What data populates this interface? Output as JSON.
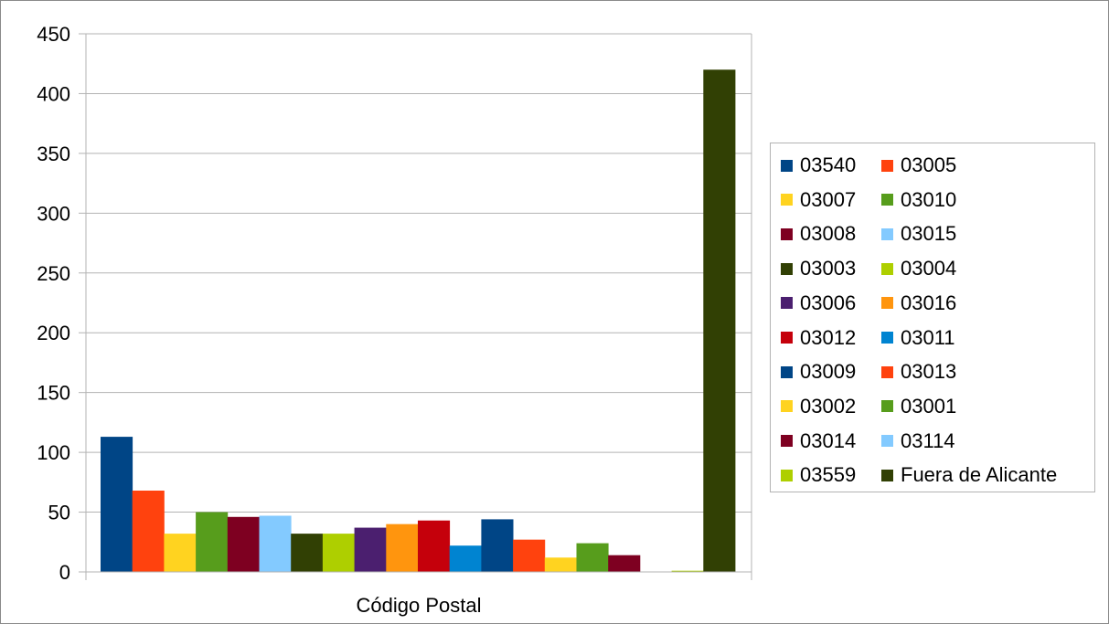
{
  "chart_data": {
    "type": "bar",
    "xlabel": "Código Postal",
    "ylabel": "",
    "title": "",
    "ylim": [
      0,
      450
    ],
    "yticks": [
      0,
      50,
      100,
      150,
      200,
      250,
      300,
      350,
      400,
      450
    ],
    "grid": true,
    "legend_position": "right",
    "categories": [
      "Código Postal"
    ],
    "series": [
      {
        "name": "03540",
        "values": [
          113
        ],
        "color": "#004586"
      },
      {
        "name": "03005",
        "values": [
          68
        ],
        "color": "#ff420e"
      },
      {
        "name": "03007",
        "values": [
          32
        ],
        "color": "#ffd320"
      },
      {
        "name": "03010",
        "values": [
          50
        ],
        "color": "#579d1c"
      },
      {
        "name": "03008",
        "values": [
          46
        ],
        "color": "#7e0021"
      },
      {
        "name": "03015",
        "values": [
          47
        ],
        "color": "#83caff"
      },
      {
        "name": "03003",
        "values": [
          32
        ],
        "color": "#314004"
      },
      {
        "name": "03004",
        "values": [
          32
        ],
        "color": "#aecf00"
      },
      {
        "name": "03006",
        "values": [
          37
        ],
        "color": "#4b1f6f"
      },
      {
        "name": "03016",
        "values": [
          40
        ],
        "color": "#ff950e"
      },
      {
        "name": "03012",
        "values": [
          43
        ],
        "color": "#c5000b"
      },
      {
        "name": "03011",
        "values": [
          22
        ],
        "color": "#0084d1"
      },
      {
        "name": "03009",
        "values": [
          44
        ],
        "color": "#004586"
      },
      {
        "name": "03013",
        "values": [
          27
        ],
        "color": "#ff420e"
      },
      {
        "name": "03002",
        "values": [
          12
        ],
        "color": "#ffd320"
      },
      {
        "name": "03001",
        "values": [
          24
        ],
        "color": "#579d1c"
      },
      {
        "name": "03014",
        "values": [
          14
        ],
        "color": "#7e0021"
      },
      {
        "name": "03114",
        "values": [
          0
        ],
        "color": "#83caff"
      },
      {
        "name": "03559",
        "values": [
          1
        ],
        "color": "#aecf00"
      },
      {
        "name": "Fuera de Alicante",
        "values": [
          420
        ],
        "color": "#314004"
      }
    ]
  }
}
